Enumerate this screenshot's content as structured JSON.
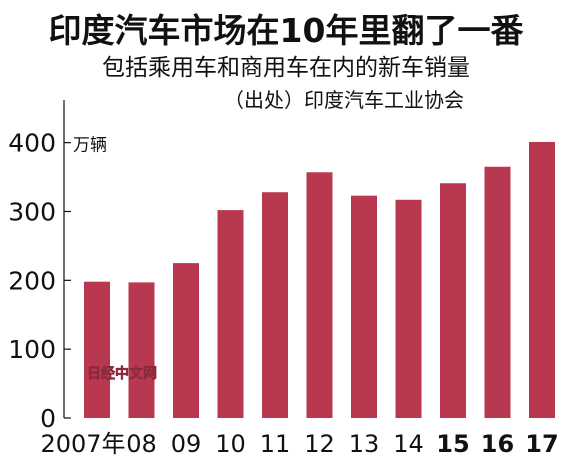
{
  "chart_data": {
    "type": "bar",
    "title": "印度汽车市场在10年里翻了一番",
    "subtitle": "包括乘用车和商用车在内的新车销量",
    "source": "（出处）印度汽车工业协会",
    "unit_label": "万辆",
    "categories": [
      "2007年",
      "08",
      "09",
      "10",
      "11",
      "12",
      "13",
      "14",
      "15",
      "16",
      "17"
    ],
    "bold_categories": [
      "15",
      "16",
      "17"
    ],
    "values": [
      198,
      197,
      225,
      302,
      328,
      357,
      323,
      317,
      341,
      365,
      401
    ],
    "y_ticks": [
      0,
      100,
      200,
      300,
      400
    ],
    "ylim": [
      0,
      430
    ],
    "grid": false,
    "bar_color": "#b8384f",
    "watermark": "日经中文网"
  }
}
